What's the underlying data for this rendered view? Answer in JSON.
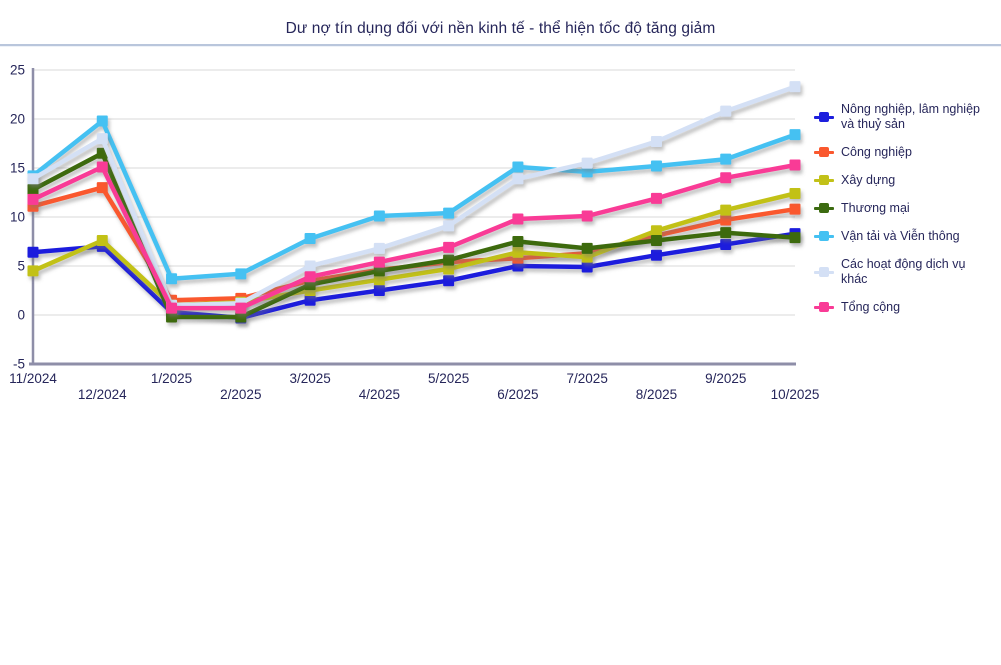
{
  "chart_data": {
    "type": "line",
    "title": "Dư nợ tín dụng đối với nền kinh tế - thể hiện tốc độ tăng giảm",
    "categories": [
      "11/2024",
      "12/2024",
      "1/2025",
      "2/2025",
      "3/2025",
      "4/2025",
      "5/2025",
      "6/2025",
      "7/2025",
      "8/2025",
      "9/2025",
      "10/2025"
    ],
    "series": [
      {
        "name": "Nông nghiệp, lâm nghiệp và thuỷ sản",
        "color": "#1d1fdd",
        "values": [
          6.4,
          7.0,
          0.3,
          -0.3,
          1.5,
          2.5,
          3.5,
          5.0,
          4.9,
          6.1,
          7.2,
          8.3
        ]
      },
      {
        "name": "Công nghiệp",
        "color": "#fa582e",
        "values": [
          11.1,
          13.0,
          1.5,
          1.7,
          3.5,
          4.6,
          5.4,
          5.8,
          6.3,
          8.1,
          9.7,
          10.8
        ]
      },
      {
        "name": "Xây dựng",
        "color": "#c2c118",
        "values": [
          4.5,
          7.6,
          1.0,
          1.3,
          2.5,
          3.6,
          4.7,
          6.4,
          5.9,
          8.6,
          10.7,
          12.4
        ]
      },
      {
        "name": "Thương mại",
        "color": "#3c6b10",
        "values": [
          12.8,
          16.5,
          -0.2,
          -0.2,
          3.1,
          4.5,
          5.6,
          7.5,
          6.8,
          7.6,
          8.4,
          7.9
        ]
      },
      {
        "name": "Vận tải và Viễn thông",
        "color": "#45c1f2",
        "values": [
          14.2,
          19.8,
          3.7,
          4.2,
          7.8,
          10.1,
          10.4,
          15.1,
          14.6,
          15.2,
          15.9,
          18.4
        ]
      },
      {
        "name": "Các hoạt động dịch vụ khác",
        "color": "#d4e0f5",
        "values": [
          13.9,
          18.0,
          1.0,
          1.2,
          5.0,
          6.8,
          9.1,
          13.9,
          15.5,
          17.7,
          20.8,
          23.3
        ]
      },
      {
        "name": "Tổng cộng",
        "color": "#f93b96",
        "values": [
          11.8,
          15.1,
          0.7,
          0.7,
          3.9,
          5.4,
          6.9,
          9.8,
          10.1,
          11.9,
          14.0,
          15.3
        ]
      }
    ],
    "ylim": [
      -5,
      25
    ],
    "y_ticks": [
      -5,
      0,
      5,
      10,
      15,
      20,
      25
    ],
    "xlabel": "",
    "ylabel": "",
    "grid": true,
    "legend_position": "right"
  },
  "colors": {
    "text": "#26265a",
    "axis": "#8e8ea8",
    "gridline": "#d8d8d8",
    "divider": "#b9c6dc",
    "background": "#ffffff"
  }
}
